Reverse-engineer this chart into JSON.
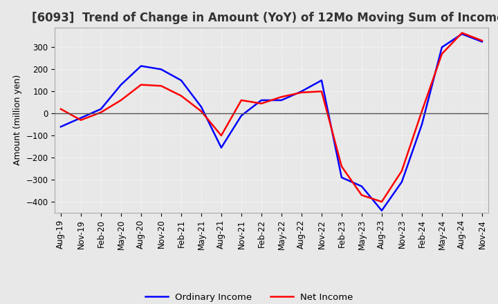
{
  "title": "[6093]  Trend of Change in Amount (YoY) of 12Mo Moving Sum of Incomes",
  "ylabel": "Amount (million yen)",
  "ylim": [
    -450,
    390
  ],
  "yticks": [
    -400,
    -300,
    -200,
    -100,
    0,
    100,
    200,
    300
  ],
  "line_colors": {
    "ordinary": "#0000ff",
    "net": "#ff0000"
  },
  "legend_labels": [
    "Ordinary Income",
    "Net Income"
  ],
  "x_labels": [
    "Aug-19",
    "Nov-19",
    "Feb-20",
    "May-20",
    "Aug-20",
    "Nov-20",
    "Feb-21",
    "May-21",
    "Aug-21",
    "Nov-21",
    "Feb-22",
    "May-22",
    "Aug-22",
    "Nov-22",
    "Feb-23",
    "May-23",
    "Aug-23",
    "Nov-23",
    "Feb-24",
    "May-24",
    "Aug-24",
    "Nov-24"
  ],
  "ordinary_income": [
    -60,
    -20,
    20,
    130,
    215,
    200,
    150,
    30,
    -155,
    -10,
    60,
    60,
    100,
    150,
    -290,
    -330,
    -440,
    -310,
    -50,
    300,
    360,
    325
  ],
  "net_income": [
    20,
    -30,
    5,
    60,
    130,
    125,
    80,
    10,
    -100,
    60,
    45,
    75,
    95,
    100,
    -240,
    -370,
    -400,
    -260,
    10,
    270,
    365,
    330
  ],
  "background_color": "#e8e8e8",
  "plot_bg_color": "#e8e8e8",
  "grid_color": "#ffffff",
  "title_fontsize": 12,
  "axis_fontsize": 9,
  "tick_fontsize": 8.5
}
